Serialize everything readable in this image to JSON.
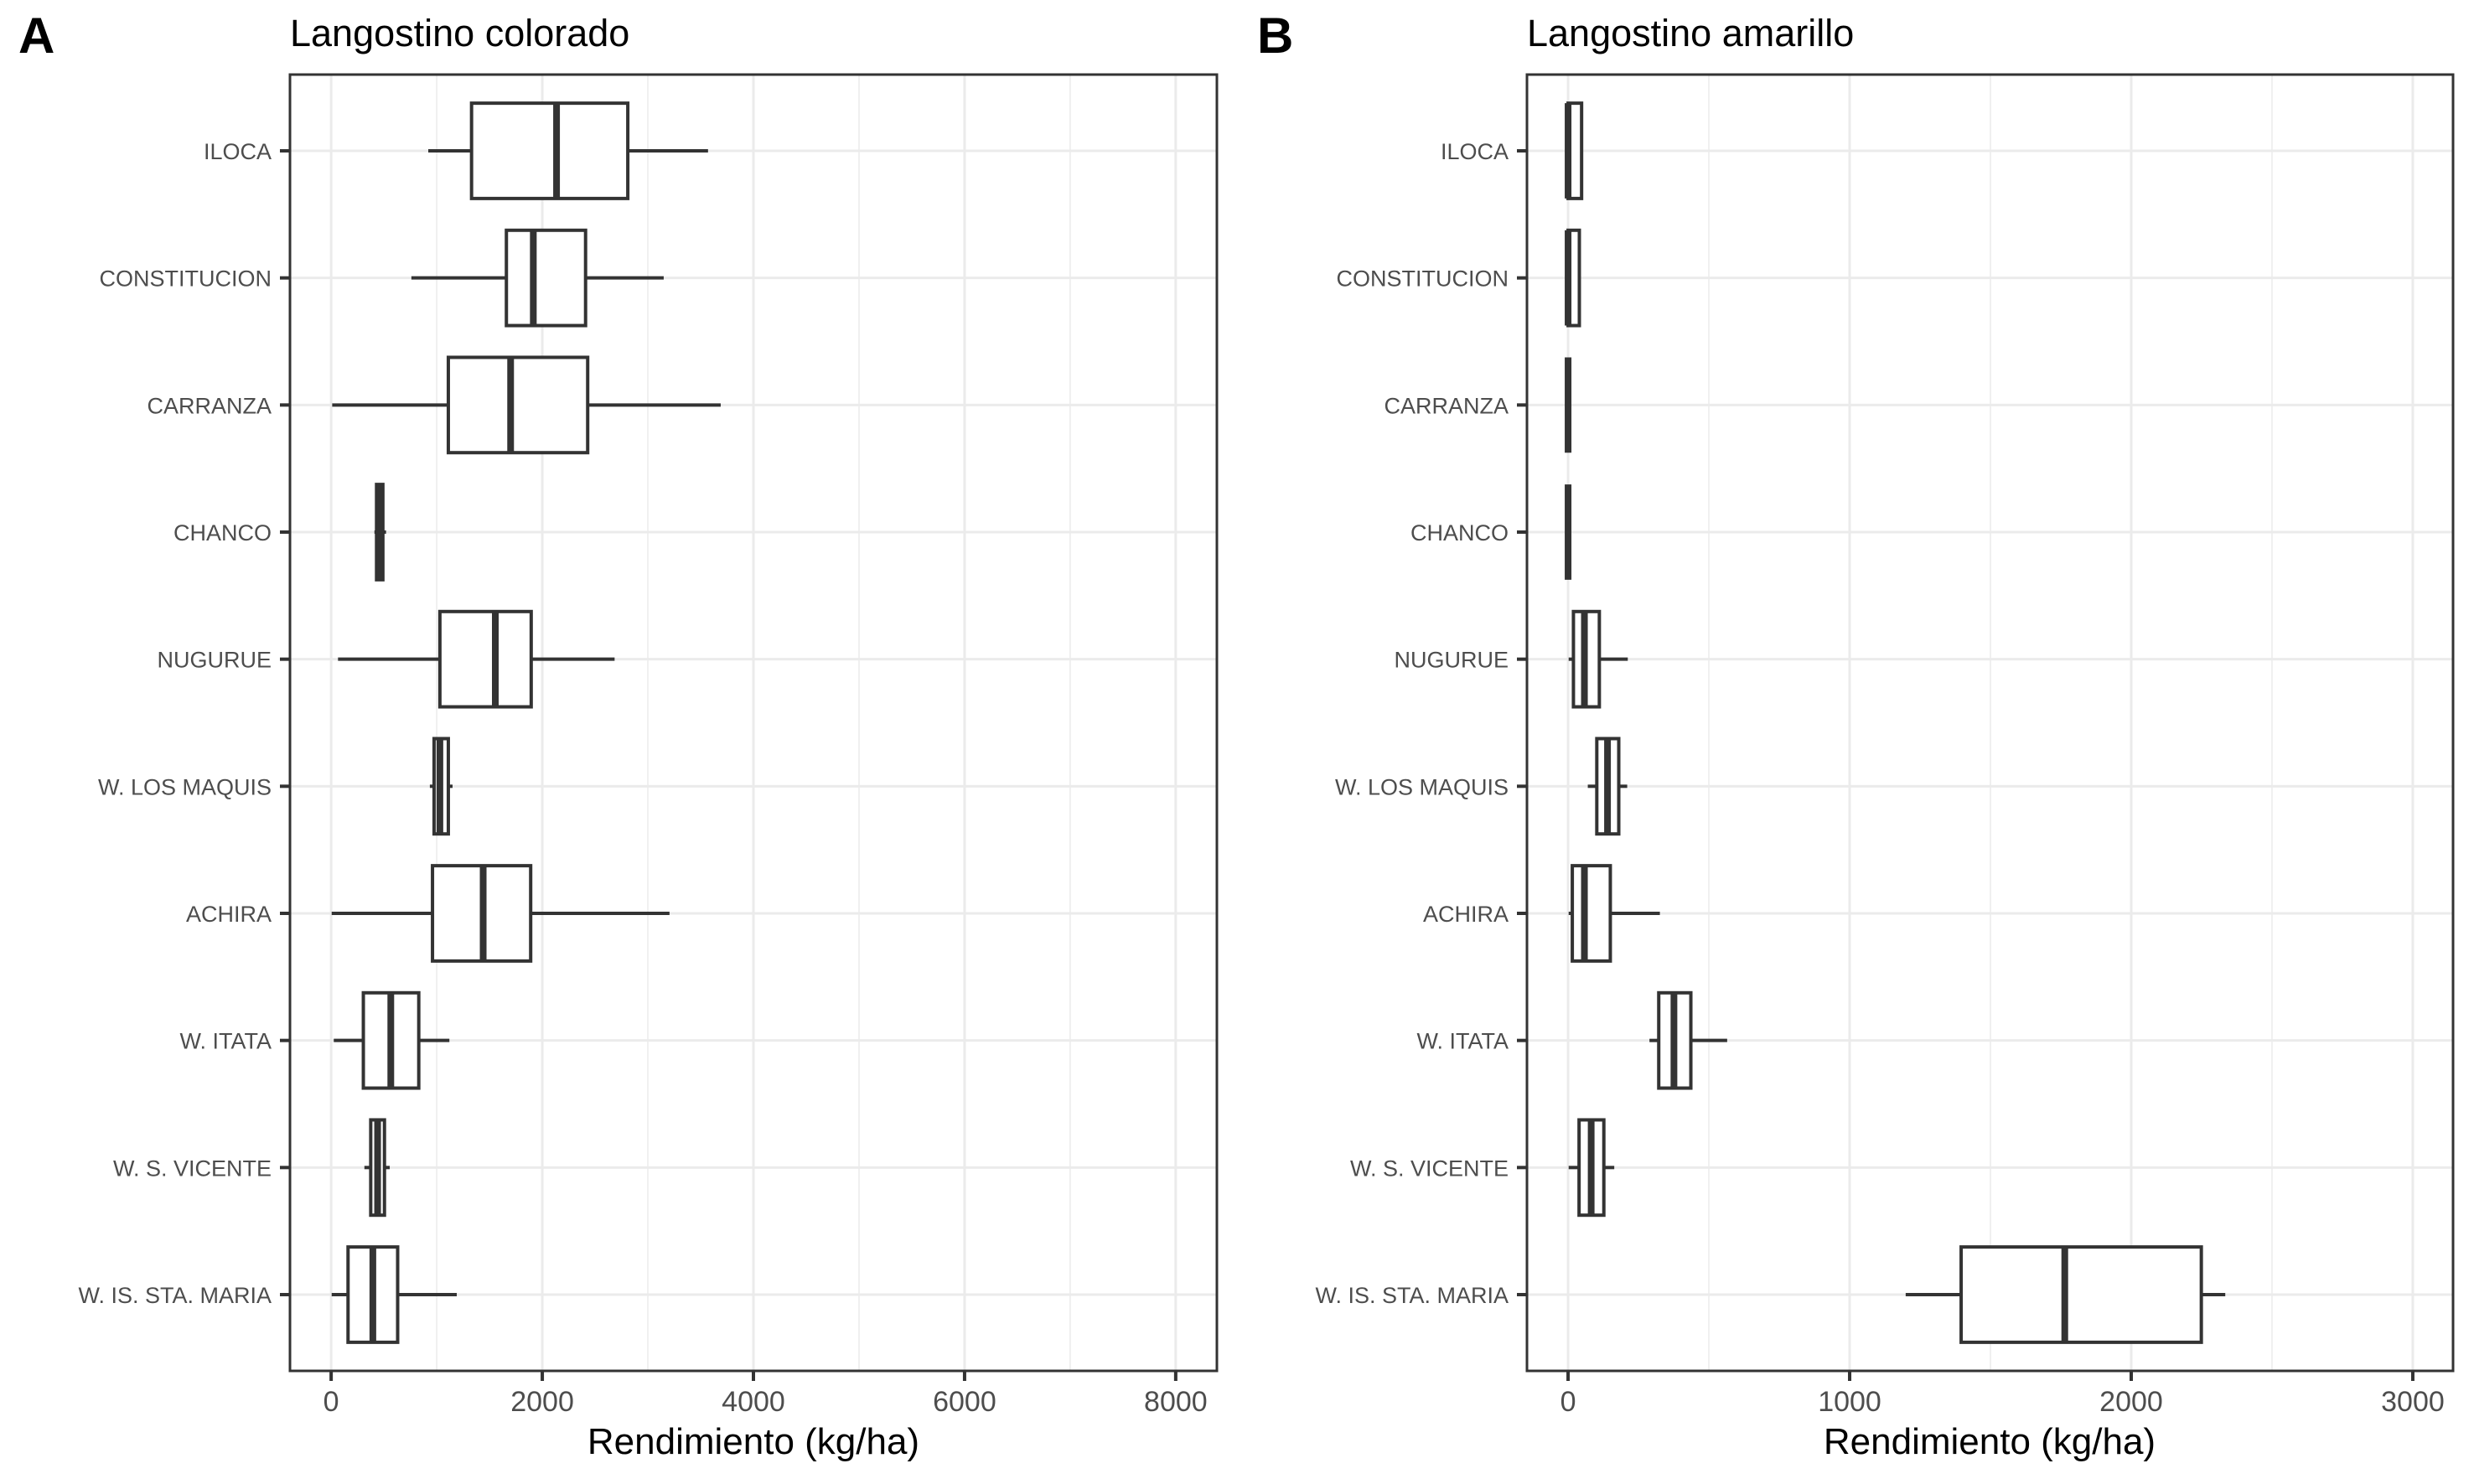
{
  "chart_data": [
    {
      "type": "boxplot",
      "panel_tag": "A",
      "title": "Langostino colorado",
      "xlabel": "Rendimiento (kg/ha)",
      "ylabel": "",
      "xlim": [
        -390,
        8390
      ],
      "x_major_ticks": [
        0,
        2000,
        4000,
        6000,
        8000
      ],
      "x_tick_labels": [
        "0",
        "2000",
        "4000",
        "6000",
        "8000"
      ],
      "x_minor_ticks": [
        1000,
        3000,
        5000,
        7000
      ],
      "grid": true,
      "categories": [
        "ILOCA",
        "CONSTITUCION",
        "CARRANZA",
        "CHANCO",
        "NUGURUE",
        "W. LOS MAQUIS",
        "ACHIRA",
        "W. ITATA",
        "W. S. VICENTE",
        "W. IS. STA. MARIA"
      ],
      "boxes": [
        {
          "category": "ILOCA",
          "min": 920,
          "q1": 1330,
          "median": 2135,
          "q3": 2810,
          "max": 3570
        },
        {
          "category": "CONSTITUCION",
          "min": 760,
          "q1": 1660,
          "median": 1915,
          "q3": 2410,
          "max": 3150
        },
        {
          "category": "CARRANZA",
          "min": 10,
          "q1": 1110,
          "median": 1700,
          "q3": 2430,
          "max": 3690
        },
        {
          "category": "CHANCO",
          "min": 410,
          "q1": 430,
          "median": 460,
          "q3": 490,
          "max": 520
        },
        {
          "category": "NUGURUE",
          "min": 65,
          "q1": 1030,
          "median": 1555,
          "q3": 1895,
          "max": 2685
        },
        {
          "category": "W. LOS MAQUIS",
          "min": 935,
          "q1": 975,
          "median": 1030,
          "q3": 1110,
          "max": 1150
        },
        {
          "category": "ACHIRA",
          "min": 5,
          "q1": 960,
          "median": 1440,
          "q3": 1890,
          "max": 3205
        },
        {
          "category": "W. ITATA",
          "min": 25,
          "q1": 305,
          "median": 565,
          "q3": 830,
          "max": 1120
        },
        {
          "category": "W. S. VICENTE",
          "min": 315,
          "q1": 375,
          "median": 440,
          "q3": 505,
          "max": 555
        },
        {
          "category": "W. IS. STA. MARIA",
          "min": 5,
          "q1": 160,
          "median": 395,
          "q3": 630,
          "max": 1190
        }
      ]
    },
    {
      "type": "boxplot",
      "panel_tag": "B",
      "title": "Langostino amarillo",
      "xlabel": "Rendimiento (kg/ha)",
      "ylabel": "",
      "xlim": [
        -146,
        3143
      ],
      "x_major_ticks": [
        0,
        1000,
        2000,
        3000
      ],
      "x_tick_labels": [
        "0",
        "1000",
        "2000",
        "3000"
      ],
      "x_minor_ticks": [
        500,
        1500,
        2500
      ],
      "grid": true,
      "categories": [
        "ILOCA",
        "CONSTITUCION",
        "CARRANZA",
        "CHANCO",
        "NUGURUE",
        "W. LOS MAQUIS",
        "ACHIRA",
        "W. ITATA",
        "W. S. VICENTE",
        "W. IS. STA. MARIA"
      ],
      "boxes": [
        {
          "category": "ILOCA",
          "min": 0,
          "q1": 0,
          "median": 0,
          "q3": 48,
          "max": 48
        },
        {
          "category": "CONSTITUCION",
          "min": 0,
          "q1": 0,
          "median": 0,
          "q3": 40,
          "max": 40
        },
        {
          "category": "CARRANZA",
          "min": 0,
          "q1": 0,
          "median": 0,
          "q3": 0,
          "max": 0
        },
        {
          "category": "CHANCO",
          "min": 0,
          "q1": 0,
          "median": 0,
          "q3": 0,
          "max": 0
        },
        {
          "category": "NUGURUE",
          "min": 2,
          "q1": 19,
          "median": 58,
          "q3": 111,
          "max": 212
        },
        {
          "category": "W. LOS MAQUIS",
          "min": 70,
          "q1": 102,
          "median": 140,
          "q3": 180,
          "max": 210
        },
        {
          "category": "ACHIRA",
          "min": 2,
          "q1": 15,
          "median": 58,
          "q3": 150,
          "max": 326
        },
        {
          "category": "W. ITATA",
          "min": 289,
          "q1": 322,
          "median": 376,
          "q3": 436,
          "max": 565
        },
        {
          "category": "W. S. VICENTE",
          "min": 2,
          "q1": 39,
          "median": 82,
          "q3": 127,
          "max": 164
        },
        {
          "category": "W. IS. STA. MARIA",
          "min": 1199,
          "q1": 1396,
          "median": 1764,
          "q3": 2249,
          "max": 2334
        }
      ]
    }
  ]
}
